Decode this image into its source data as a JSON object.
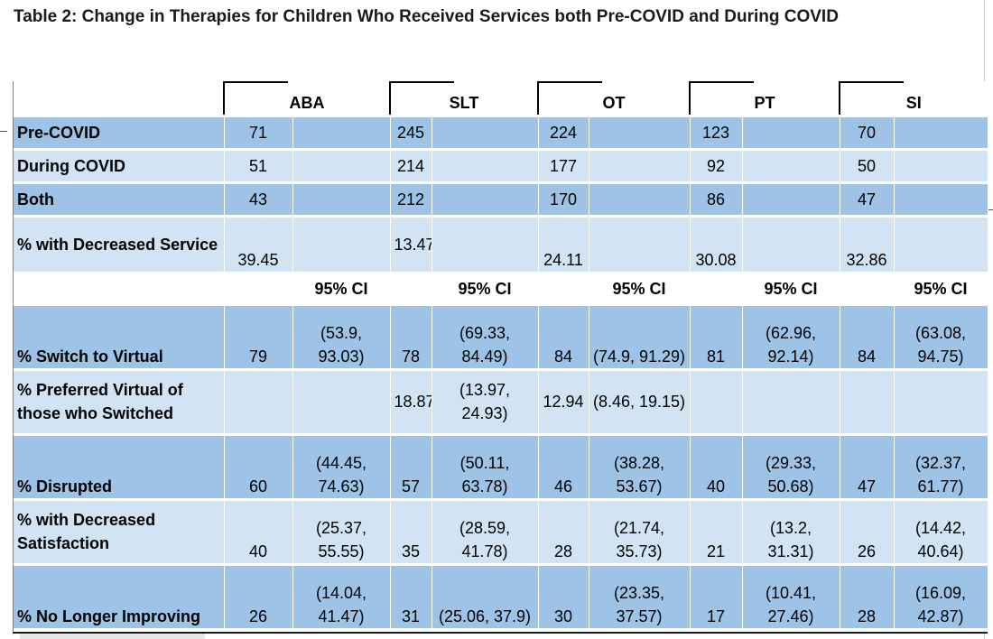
{
  "title": "Table 2: Change in Therapies for Children Who Received Services both Pre-COVID and During COVID",
  "columns": [
    "ABA",
    "SLT",
    "OT",
    "PT",
    "SI"
  ],
  "ci_header": "95% CI",
  "rows": [
    {
      "label": "Pre-COVID",
      "values": [
        "71",
        "245",
        "224",
        "123",
        "70"
      ]
    },
    {
      "label": "During COVID",
      "values": [
        "51",
        "214",
        "177",
        "92",
        "50"
      ]
    },
    {
      "label": "Both",
      "values": [
        "43",
        "212",
        "170",
        "86",
        "47"
      ]
    },
    {
      "label": "% with Decreased Service",
      "values": [
        "39.45",
        "13.47",
        "24.11",
        "30.08",
        "32.86"
      ]
    }
  ],
  "ci_rows": [
    {
      "label": "% Switch to Virtual",
      "values": [
        "79",
        "78",
        "84",
        "81",
        "84"
      ],
      "ci": [
        "(53.9, 93.03)",
        "(69.33, 84.49)",
        "(74.9, 91.29)",
        "(62.96, 92.14)",
        "(63.08, 94.75)"
      ]
    },
    {
      "label": "% Preferred Virtual of those who Switched",
      "values": [
        "",
        "18.87",
        "12.94",
        "",
        ""
      ],
      "ci": [
        "",
        "(13.97, 24.93)",
        "(8.46, 19.15)",
        "",
        ""
      ]
    },
    {
      "label": "% Disrupted",
      "values": [
        "60",
        "57",
        "46",
        "40",
        "47"
      ],
      "ci": [
        "(44.45, 74.63)",
        "(50.11, 63.78)",
        "(38.28, 53.67)",
        "(29.33, 50.68)",
        "(32.37, 61.77)"
      ]
    },
    {
      "label": "% with Decreased Satisfaction",
      "values": [
        "40",
        "35",
        "28",
        "21",
        "26"
      ],
      "ci": [
        "(25.37, 55.55)",
        "(28.59, 41.78)",
        "(21.74, 35.73)",
        "(13.2, 31.31)",
        "(14.42, 40.64)"
      ]
    },
    {
      "label": "% No Longer Improving",
      "values": [
        "26",
        "31",
        "30",
        "17",
        "28"
      ],
      "ci": [
        "(14.04, 41.47)",
        "(25.06, 37.9)",
        "(23.35, 37.57)",
        "(10.41, 27.46)",
        "(16.09, 42.87)"
      ]
    }
  ],
  "colors": {
    "dark_row": "#9dc3e6",
    "light_row": "#d2e3f3"
  }
}
